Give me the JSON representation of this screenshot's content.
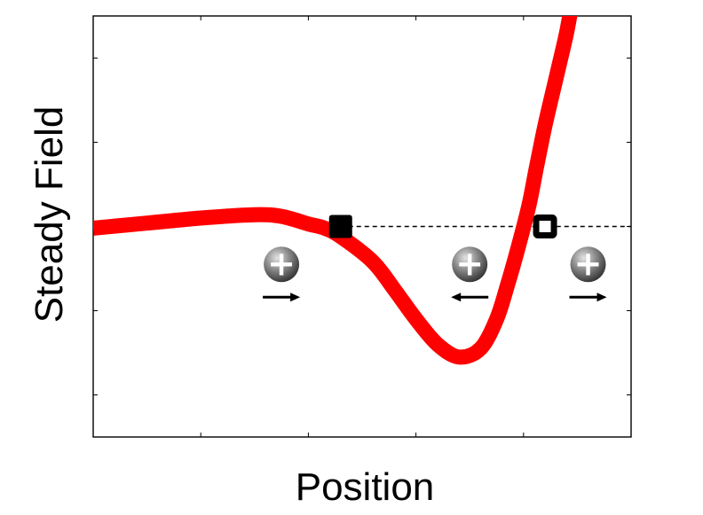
{
  "chart_data": {
    "type": "line",
    "title": "",
    "xlabel": "Position",
    "ylabel": "Steady Field",
    "xlim": [
      0,
      5
    ],
    "ylim": [
      -2.5,
      2.5
    ],
    "grid": false,
    "series": [
      {
        "color": "#ff0000",
        "x": [
          0.0,
          0.5,
          1.0,
          1.5,
          1.75,
          2.0,
          2.15,
          2.3,
          2.6,
          2.8,
          3.0,
          3.2,
          3.4,
          3.6,
          3.75,
          3.85,
          3.95,
          4.05,
          4.12,
          4.2,
          4.3,
          4.4,
          4.47
        ],
        "y": [
          -0.02,
          0.04,
          0.1,
          0.14,
          0.12,
          0.03,
          -0.02,
          -0.12,
          -0.42,
          -0.75,
          -1.1,
          -1.4,
          -1.55,
          -1.45,
          -1.1,
          -0.7,
          -0.25,
          0.25,
          0.7,
          1.2,
          1.75,
          2.3,
          2.8
        ]
      }
    ],
    "reference_line": {
      "y": 0,
      "x_start": 2.3,
      "x_end": 5.0,
      "style": "dashed",
      "color": "#000000"
    },
    "fixed_points": [
      {
        "x": 2.3,
        "y": 0,
        "style": "filled",
        "color": "#000000"
      },
      {
        "x": 4.2,
        "y": 0,
        "style": "open",
        "color": "#000000"
      }
    ],
    "particles": [
      {
        "x": 1.75,
        "y": -0.45,
        "symbol": "+",
        "direction": "right"
      },
      {
        "x": 3.5,
        "y": -0.45,
        "symbol": "+",
        "direction": "left"
      },
      {
        "x": 4.6,
        "y": -0.45,
        "symbol": "+",
        "direction": "right"
      }
    ],
    "x_ticks": [
      0,
      1,
      2,
      3,
      4,
      5
    ],
    "y_ticks": [
      -2,
      -1,
      0,
      1,
      2
    ]
  }
}
